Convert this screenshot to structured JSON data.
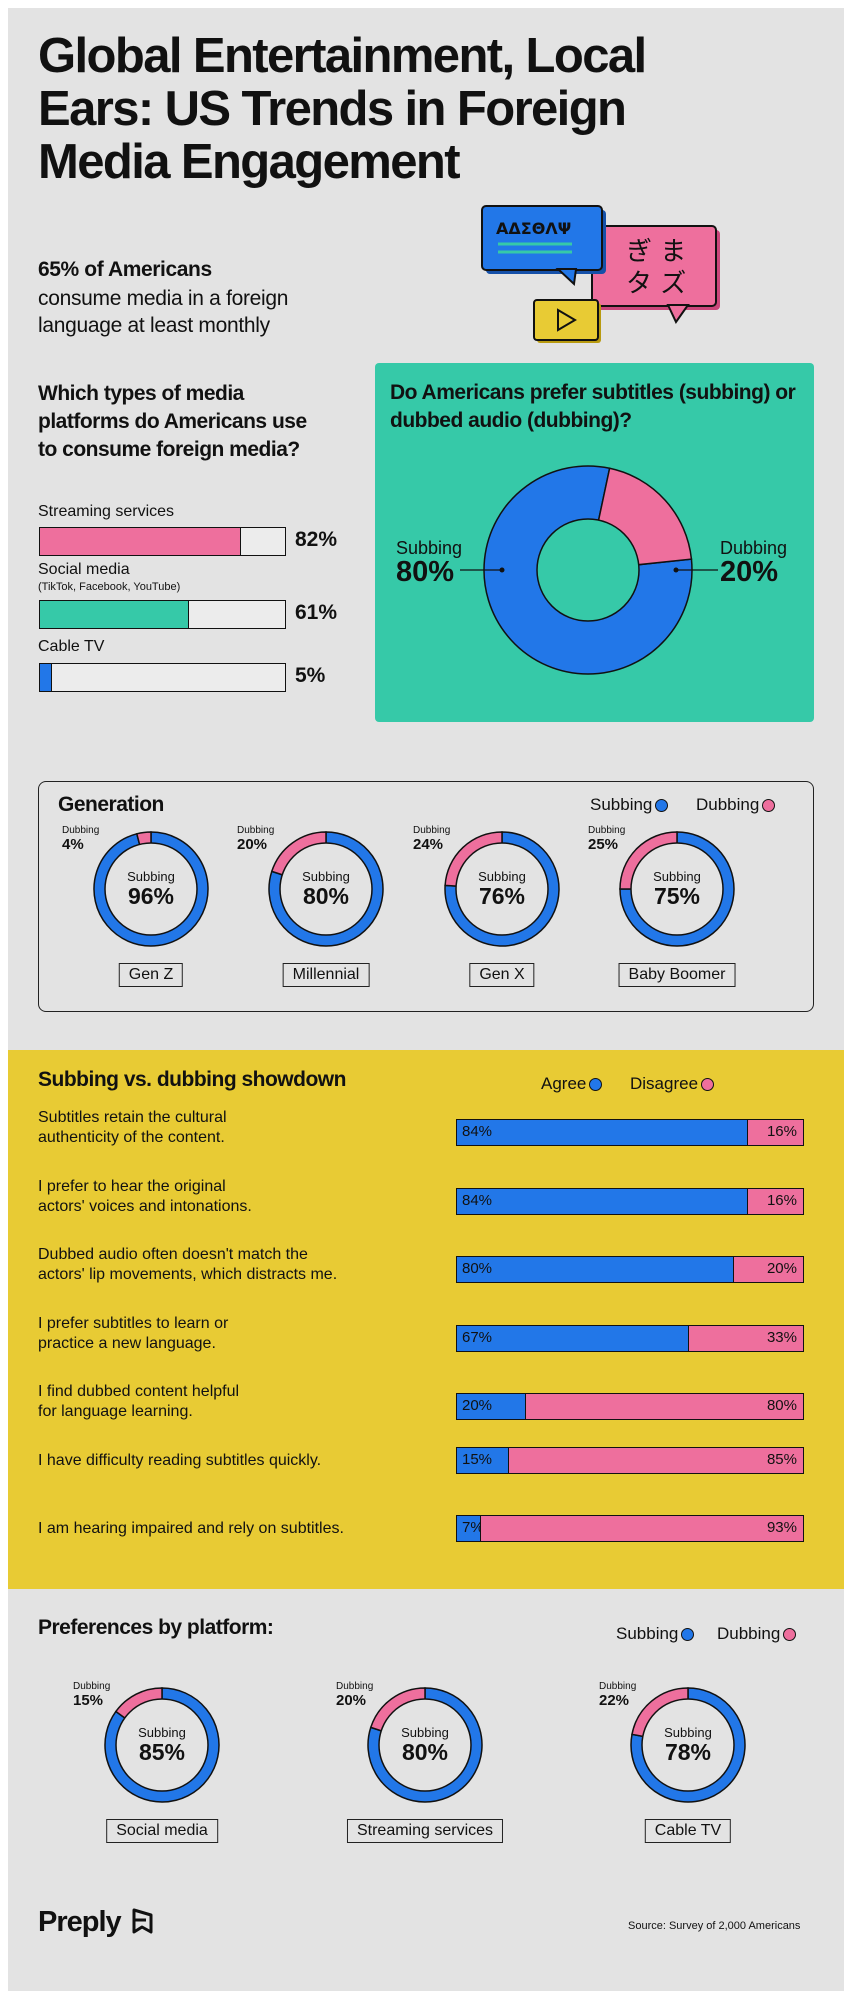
{
  "title": "Global Entertainment, Local Ears: US Trends in Foreign Media Engagement",
  "headline": {
    "bold": "65% of Americans",
    "line1": "consume media in a foreign",
    "line2": "language at least monthly"
  },
  "illustration": {
    "greek": "ΑΔΣΘΛΨ",
    "japanese_top": "ぎ ま",
    "japanese_bottom": "タ ズ",
    "icon": "play-icon"
  },
  "colors": {
    "subbing": "#2277e8",
    "dubbing": "#ee6f9d",
    "teal": "#36c9a8",
    "yellow": "#e8cb34",
    "background": "#e3e3e3"
  },
  "platforms_section": {
    "title": "Which types of media platforms do Americans use to consume foreign media?",
    "items": [
      {
        "label": "Streaming services",
        "sub": "",
        "value": 82,
        "value_label": "82%",
        "color": "#ee6f9d"
      },
      {
        "label": "Social media",
        "sub": "(TikTok, Facebook, YouTube)",
        "value": 61,
        "value_label": "61%",
        "color": "#36c9a8"
      },
      {
        "label": "Cable TV",
        "sub": "",
        "value": 5,
        "value_label": "5%",
        "color": "#2277e8"
      }
    ]
  },
  "preference_section": {
    "title": "Do Americans prefer subtitles (subbing) or dubbed audio (dubbing)?",
    "subbing_label": "Subbing",
    "subbing_value": "80%",
    "dubbing_label": "Dubbing",
    "dubbing_value": "20%"
  },
  "generation_section": {
    "title": "Generation",
    "legend_subbing": "Subbing",
    "legend_dubbing": "Dubbing",
    "center_label": "Subbing",
    "dub_label": "Dubbing",
    "groups": [
      {
        "name": "Gen Z",
        "subbing": 96,
        "dubbing": 4,
        "subbing_label": "96%",
        "dubbing_label": "4%"
      },
      {
        "name": "Millennial",
        "subbing": 80,
        "dubbing": 20,
        "subbing_label": "80%",
        "dubbing_label": "20%"
      },
      {
        "name": "Gen X",
        "subbing": 76,
        "dubbing": 24,
        "subbing_label": "76%",
        "dubbing_label": "24%"
      },
      {
        "name": "Baby Boomer",
        "subbing": 75,
        "dubbing": 25,
        "subbing_label": "75%",
        "dubbing_label": "25%"
      }
    ]
  },
  "showdown_section": {
    "title": "Subbing vs. dubbing showdown",
    "legend_agree": "Agree",
    "legend_disagree": "Disagree",
    "statements": [
      {
        "line1": "Subtitles retain the cultural",
        "line2": "authenticity of the content.",
        "agree": 84,
        "disagree": 16,
        "agree_label": "84%",
        "disagree_label": "16%"
      },
      {
        "line1": "I prefer to hear the original",
        "line2": "actors' voices and intonations.",
        "agree": 84,
        "disagree": 16,
        "agree_label": "84%",
        "disagree_label": "16%"
      },
      {
        "line1": "Dubbed audio often doesn't match the",
        "line2": "actors' lip movements, which distracts me.",
        "agree": 80,
        "disagree": 20,
        "agree_label": "80%",
        "disagree_label": "20%"
      },
      {
        "line1": "I prefer subtitles to learn or",
        "line2": "practice a new language.",
        "agree": 67,
        "disagree": 33,
        "agree_label": "67%",
        "disagree_label": "33%"
      },
      {
        "line1": "I find dubbed content helpful",
        "line2": "for language learning.",
        "agree": 20,
        "disagree": 80,
        "agree_label": "20%",
        "disagree_label": "80%"
      },
      {
        "line1": "I have difficulty reading subtitles quickly.",
        "line2": "",
        "agree": 15,
        "disagree": 85,
        "agree_label": "15%",
        "disagree_label": "85%"
      },
      {
        "line1": "I am hearing impaired and rely on subtitles.",
        "line2": "",
        "agree": 7,
        "disagree": 93,
        "agree_label": "7%",
        "disagree_label": "93%"
      }
    ]
  },
  "platform_pref_section": {
    "title": "Preferences by platform:",
    "legend_subbing": "Subbing",
    "legend_dubbing": "Dubbing",
    "center_label": "Subbing",
    "dub_label": "Dubbing",
    "groups": [
      {
        "name": "Social media",
        "subbing": 85,
        "dubbing": 15,
        "subbing_label": "85%",
        "dubbing_label": "15%"
      },
      {
        "name": "Streaming services",
        "subbing": 80,
        "dubbing": 20,
        "subbing_label": "80%",
        "dubbing_label": "20%"
      },
      {
        "name": "Cable TV",
        "subbing": 78,
        "dubbing": 22,
        "subbing_label": "78%",
        "dubbing_label": "22%"
      }
    ]
  },
  "footer": {
    "logo": "Preply",
    "source": "Source: Survey of 2,000 Americans"
  },
  "chart_data": [
    {
      "type": "bar",
      "title": "Which types of media platforms do Americans use to consume foreign media?",
      "categories": [
        "Streaming services",
        "Social media",
        "Cable TV"
      ],
      "values": [
        82,
        61,
        5
      ],
      "unit": "%"
    },
    {
      "type": "pie",
      "title": "Do Americans prefer subtitles (subbing) or dubbed audio (dubbing)?",
      "labels": [
        "Subbing",
        "Dubbing"
      ],
      "values": [
        80,
        20
      ]
    },
    {
      "type": "pie",
      "title": "Generation",
      "categories": [
        "Gen Z",
        "Millennial",
        "Gen X",
        "Baby Boomer"
      ],
      "series": [
        {
          "name": "Subbing",
          "values": [
            96,
            80,
            76,
            75
          ]
        },
        {
          "name": "Dubbing",
          "values": [
            4,
            20,
            24,
            25
          ]
        }
      ]
    },
    {
      "type": "bar",
      "title": "Subbing vs. dubbing showdown",
      "categories": [
        "Subtitles retain the cultural authenticity of the content.",
        "I prefer to hear the original actors' voices and intonations.",
        "Dubbed audio often doesn't match the actors' lip movements, which distracts me.",
        "I prefer subtitles to learn or practice a new language.",
        "I find dubbed content helpful for language learning.",
        "I have difficulty reading subtitles quickly.",
        "I am hearing impaired and rely on subtitles."
      ],
      "series": [
        {
          "name": "Agree",
          "values": [
            84,
            84,
            80,
            67,
            20,
            15,
            7
          ]
        },
        {
          "name": "Disagree",
          "values": [
            16,
            16,
            20,
            33,
            80,
            85,
            93
          ]
        }
      ],
      "stacked": true
    },
    {
      "type": "pie",
      "title": "Preferences by platform:",
      "categories": [
        "Social media",
        "Streaming services",
        "Cable TV"
      ],
      "series": [
        {
          "name": "Subbing",
          "values": [
            85,
            80,
            78
          ]
        },
        {
          "name": "Dubbing",
          "values": [
            15,
            20,
            22
          ]
        }
      ]
    }
  ]
}
